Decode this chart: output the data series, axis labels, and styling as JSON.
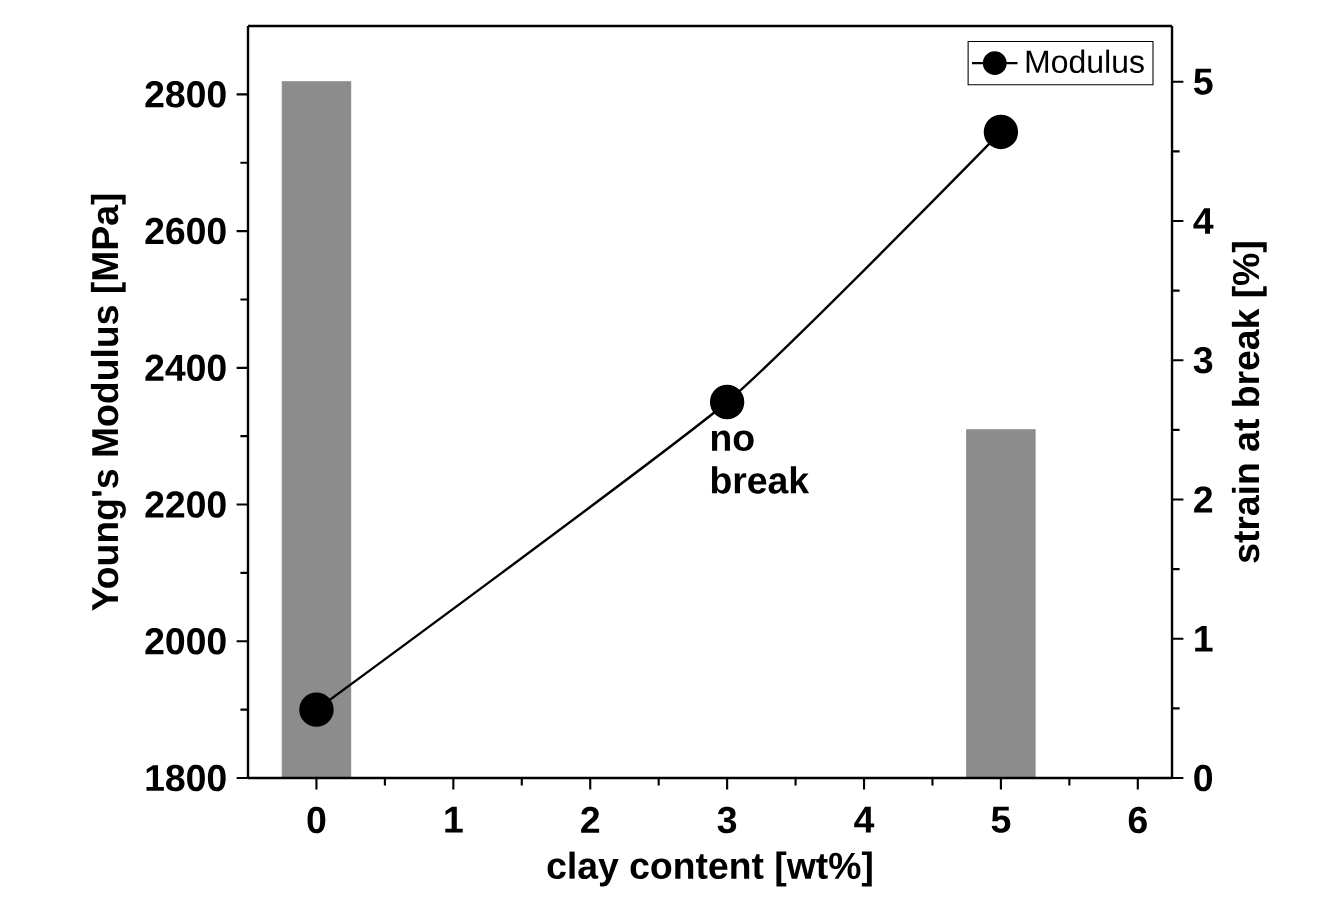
{
  "chart_data": {
    "type": "line",
    "xlabel": "clay content [wt%]",
    "ylabel": "Young's Modulus [MPa]",
    "y2label": "strain at break [%]",
    "xlim": [
      -0.5,
      6.25
    ],
    "xticks": [
      0,
      1,
      2,
      3,
      4,
      5,
      6
    ],
    "ylim": [
      1800,
      2900
    ],
    "yticks": [
      1800,
      2000,
      2200,
      2400,
      2600,
      2800
    ],
    "y2lim": [
      0,
      5.4
    ],
    "y2ticks": [
      0,
      1,
      2,
      3,
      4,
      5
    ],
    "legend": "top right",
    "annotations": [
      "no break"
    ],
    "series": [
      {
        "name": "Modulus",
        "marker": "circle",
        "color": "#000000",
        "x": [
          0,
          3,
          5
        ],
        "values": [
          1900,
          2350,
          2745
        ]
      },
      {
        "type": "bar",
        "axis": "y2",
        "color": "#8c8c8c",
        "x": [
          0,
          5
        ],
        "values": [
          5.0,
          2.5
        ]
      }
    ]
  }
}
